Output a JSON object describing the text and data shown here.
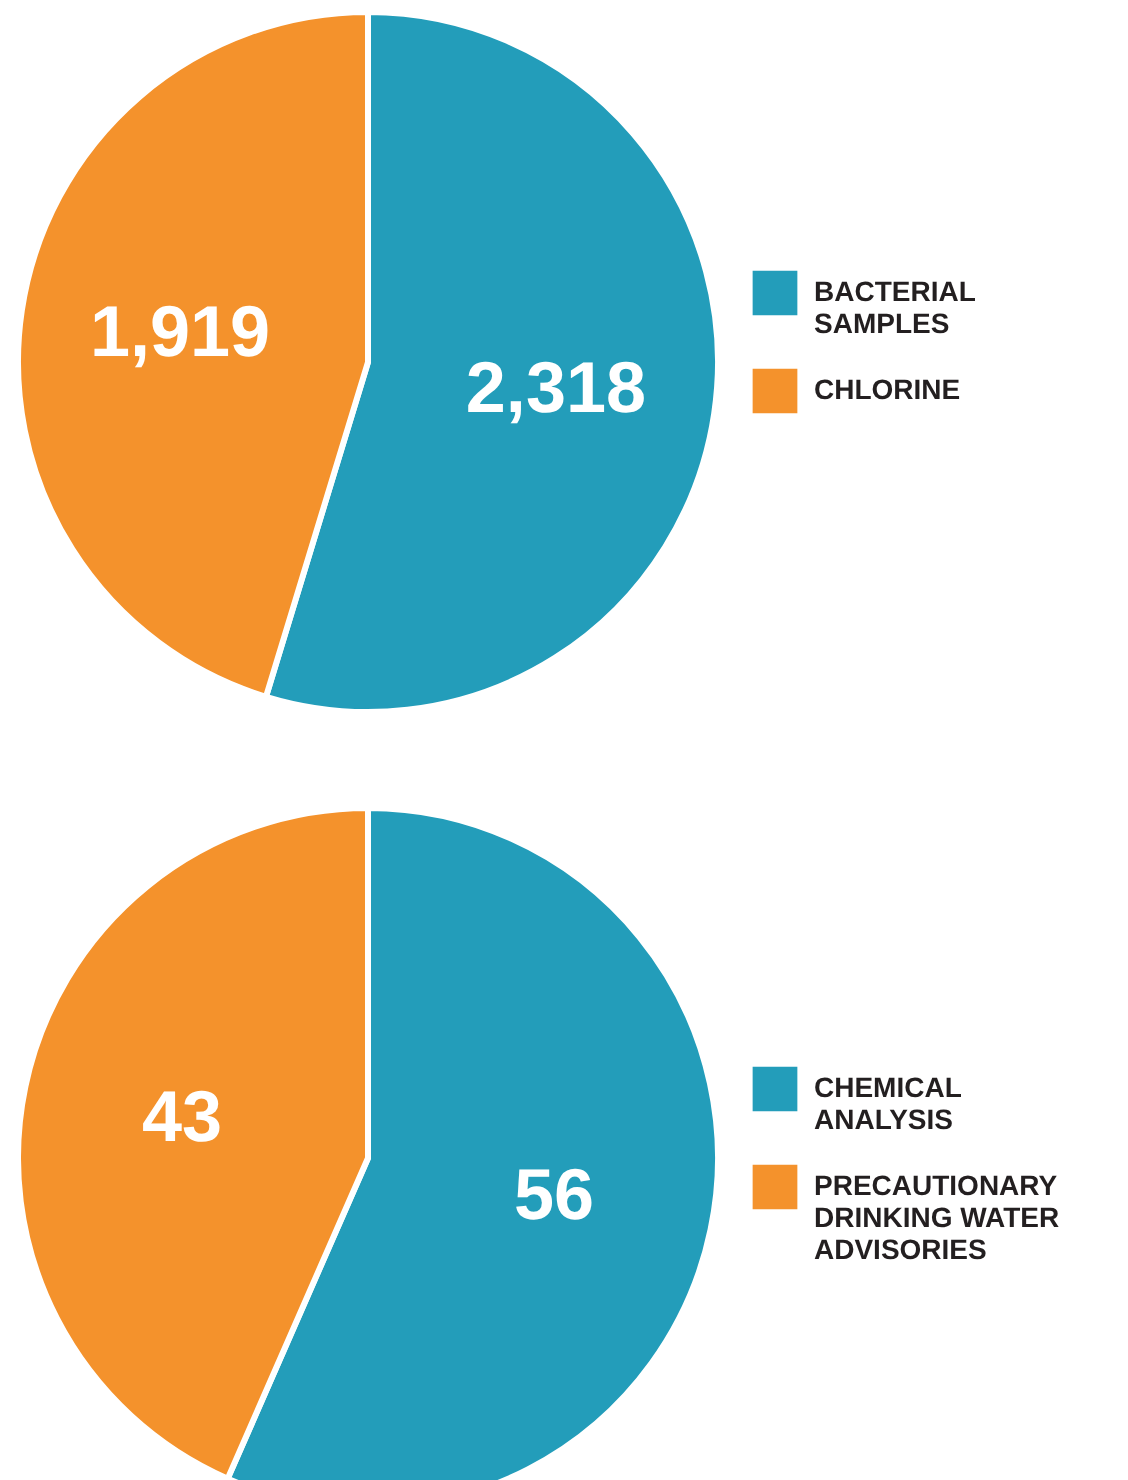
{
  "chart_data": [
    {
      "type": "pie",
      "categories": [
        "BACTERIAL\nSAMPLES",
        "CHLORINE"
      ],
      "values": [
        2318,
        1919
      ],
      "value_labels": [
        "2,318",
        "1,919"
      ],
      "colors": [
        "#239dba",
        "#f4922c"
      ],
      "legend": "right"
    },
    {
      "type": "pie",
      "categories": [
        "CHEMICAL\nANALYSIS",
        "PRECAUTIONARY\nDRINKING WATER\nADVISORIES"
      ],
      "values": [
        56,
        43
      ],
      "value_labels": [
        "56",
        "43"
      ],
      "colors": [
        "#239dba",
        "#f4922c"
      ],
      "legend": "right"
    }
  ]
}
